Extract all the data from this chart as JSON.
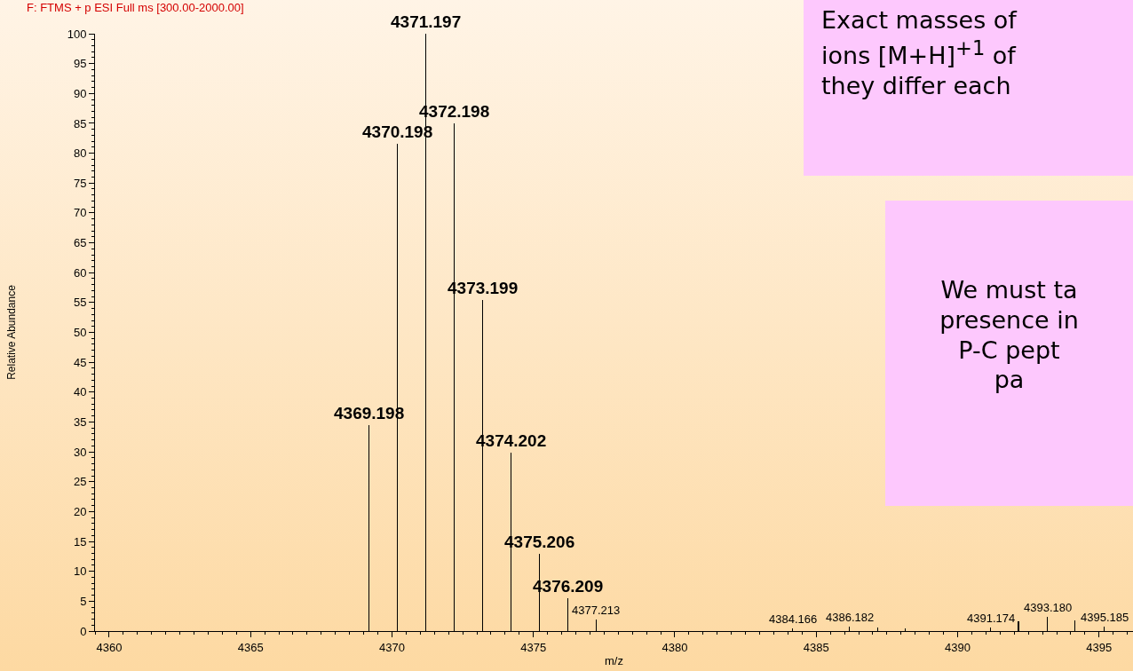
{
  "chart_data": {
    "type": "bar",
    "title": "F: FTMS + p ESI Full ms [300.00-2000.00]",
    "xlabel": "m/z",
    "ylabel": "Relative Abundance",
    "x": [
      4369.198,
      4370.198,
      4371.197,
      4372.198,
      4373.199,
      4374.202,
      4375.206,
      4376.209,
      4377.213,
      4384.166,
      4386.182,
      4387.17,
      4388.15,
      4391.174,
      4392.15,
      4393.18,
      4394.15,
      4395.185
    ],
    "values": [
      34.5,
      81.6,
      100,
      85,
      55.4,
      29.8,
      12.9,
      5.5,
      1.9,
      0.5,
      0.8,
      0.6,
      0.4,
      0.6,
      1.6,
      2.4,
      1.8,
      0.8
    ],
    "color": "#000000",
    "xlim": [
      4359.5,
      4396.2
    ],
    "xticks": [
      4360,
      4365,
      4370,
      4375,
      4380,
      4385,
      4390,
      4395
    ],
    "ylim": [
      0,
      100
    ],
    "yticks": [
      0,
      5,
      10,
      15,
      20,
      25,
      30,
      35,
      40,
      45,
      50,
      55,
      60,
      65,
      70,
      75,
      80,
      85,
      90,
      95,
      100
    ],
    "annotations": [
      "Exact masses of\nions [M+H]$^{+1}$ of\nthey differ each",
      "We must ta\npresence in\nP-C pept\npa",
      {
        "text": "4369.198",
        "x": 4369.198,
        "y": 34.5
      },
      {
        "text": "4370.198",
        "x": 4370.198,
        "y": 81.6
      },
      {
        "text": "4371.197",
        "x": 4371.197,
        "y": 100
      },
      {
        "text": "4372.198",
        "x": 4372.198,
        "y": 85
      },
      {
        "text": "4373.199",
        "x": 4373.199,
        "y": 55.4
      },
      {
        "text": "4374.202",
        "x": 4374.202,
        "y": 29.8
      },
      {
        "text": "4375.206",
        "x": 4375.206,
        "y": 12.9
      },
      {
        "text": "4376.209",
        "x": 4376.209,
        "y": 5.5
      },
      {
        "text": "4377.213",
        "x": 4377.213,
        "y": 1.9
      },
      {
        "text": "4384.166",
        "x": 4384.166,
        "y": 0.5
      },
      {
        "text": "4386.182",
        "x": 4386.182,
        "y": 0.8
      },
      {
        "text": "4391.174",
        "x": 4391.174,
        "y": 0.6
      },
      {
        "text": "4393.180",
        "x": 4393.18,
        "y": 2.4
      },
      {
        "text": "4395.185",
        "x": 4395.185,
        "y": 0.8
      }
    ]
  }
}
